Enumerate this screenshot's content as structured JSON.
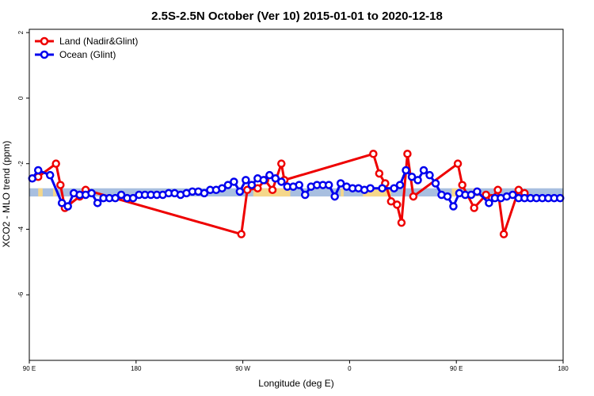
{
  "chart_data": {
    "type": "line",
    "title": "2.5S-2.5N October (Ver 10)   2015-01-01 to 2020-12-18",
    "xlabel": "Longitude (deg E)",
    "ylabel": "XCO2 - MLO trend (ppm)",
    "xlim": [
      90,
      450
    ],
    "ylim": [
      -8,
      2.1
    ],
    "x_ticks": [
      {
        "value": 90,
        "label": "90 E"
      },
      {
        "value": 162,
        "label": "180"
      },
      {
        "value": 234,
        "label": "90 W"
      },
      {
        "value": 306,
        "label": "0"
      },
      {
        "value": 378,
        "label": "90 E"
      },
      {
        "value": 450,
        "label": "180"
      }
    ],
    "y_ticks": [
      {
        "value": 2,
        "label": "2"
      },
      {
        "value": 0,
        "label": "0"
      },
      {
        "value": -2,
        "label": "-2"
      },
      {
        "value": -4,
        "label": "-4"
      },
      {
        "value": -6,
        "label": "-6"
      }
    ],
    "reference_band": {
      "ymin": -3.0,
      "ymax": -2.75,
      "color": "#a8bfe0"
    },
    "land_mask_color": "#f5d78a",
    "land_mask_segments": [
      [
        96,
        99
      ],
      [
        106,
        108
      ],
      [
        241,
        266
      ],
      [
        300,
        302
      ],
      [
        315,
        334
      ],
      [
        375,
        379
      ],
      [
        389,
        394
      ]
    ],
    "legend_position": "top-left",
    "series": [
      {
        "name": "Land (Nadir&Glint)",
        "color": "#ee0000",
        "x": [
          96,
          108,
          111,
          114,
          124,
          128,
          233,
          237,
          244,
          249,
          254,
          260,
          262,
          322,
          326,
          330,
          334,
          338,
          341,
          345,
          349,
          379,
          382,
          390,
          398,
          402,
          406,
          410,
          420,
          424
        ],
        "y": [
          -2.4,
          -2.0,
          -2.65,
          -3.35,
          -3.0,
          -2.8,
          -4.15,
          -2.8,
          -2.75,
          -2.5,
          -2.8,
          -2.0,
          -2.5,
          -1.7,
          -2.3,
          -2.6,
          -3.15,
          -3.25,
          -3.8,
          -1.7,
          -3.0,
          -2.0,
          -2.65,
          -3.35,
          -2.95,
          -3.05,
          -2.8,
          -4.15,
          -2.8,
          -2.9
        ]
      },
      {
        "name": "Ocean (Glint)",
        "color": "#0000ee",
        "x": [
          92,
          96,
          104,
          112,
          116,
          120,
          124,
          128,
          132,
          136,
          140,
          144,
          148,
          152,
          156,
          160,
          164,
          168,
          172,
          176,
          180,
          184,
          188,
          192,
          196,
          200,
          204,
          208,
          212,
          216,
          220,
          224,
          228,
          232,
          236,
          240,
          244,
          248,
          252,
          256,
          260,
          264,
          268,
          272,
          276,
          280,
          284,
          288,
          292,
          296,
          300,
          304,
          308,
          312,
          316,
          320,
          328,
          336,
          340,
          344,
          348,
          352,
          356,
          360,
          364,
          368,
          372,
          376,
          380,
          384,
          388,
          392,
          400,
          404,
          408,
          412,
          416,
          420,
          424,
          428,
          432,
          436,
          440,
          444,
          448
        ],
        "y": [
          -2.45,
          -2.2,
          -2.35,
          -3.2,
          -3.3,
          -2.9,
          -2.95,
          -2.95,
          -2.9,
          -3.2,
          -3.05,
          -3.05,
          -3.05,
          -2.95,
          -3.05,
          -3.05,
          -2.95,
          -2.95,
          -2.95,
          -2.95,
          -2.95,
          -2.9,
          -2.9,
          -2.95,
          -2.9,
          -2.85,
          -2.85,
          -2.9,
          -2.8,
          -2.8,
          -2.75,
          -2.65,
          -2.55,
          -2.85,
          -2.5,
          -2.65,
          -2.45,
          -2.5,
          -2.35,
          -2.45,
          -2.55,
          -2.7,
          -2.7,
          -2.65,
          -2.95,
          -2.7,
          -2.65,
          -2.65,
          -2.65,
          -3.0,
          -2.6,
          -2.7,
          -2.75,
          -2.75,
          -2.8,
          -2.75,
          -2.75,
          -2.75,
          -2.65,
          -2.2,
          -2.4,
          -2.5,
          -2.2,
          -2.35,
          -2.6,
          -2.95,
          -3.0,
          -3.3,
          -2.9,
          -2.95,
          -2.95,
          -2.85,
          -3.2,
          -3.05,
          -3.05,
          -3.0,
          -2.95,
          -3.05,
          -3.05,
          -3.05,
          -3.05,
          -3.05,
          -3.05,
          -3.05,
          -3.05
        ]
      }
    ]
  }
}
